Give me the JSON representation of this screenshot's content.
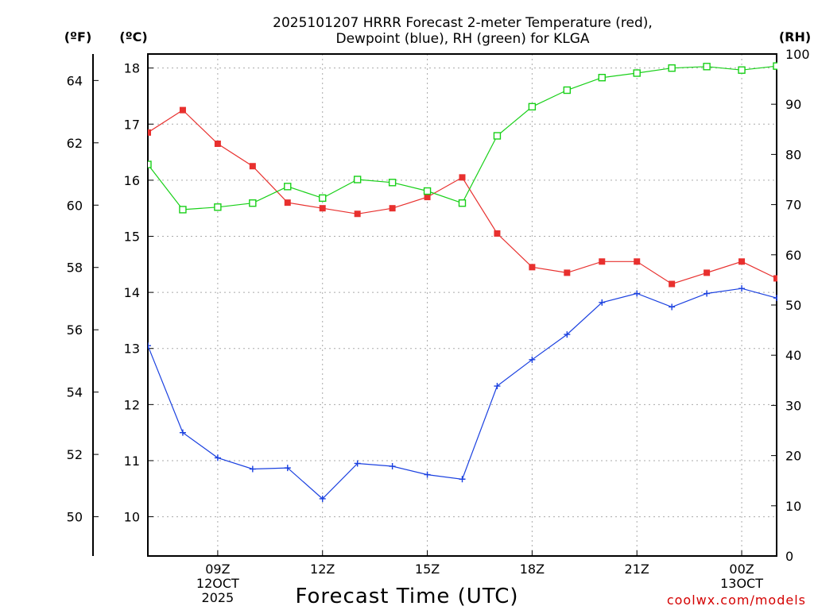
{
  "chart_data": {
    "type": "line",
    "title_lines": [
      "2025101207 HRRR Forecast 2-meter Temperature (red),",
      "Dewpoint (blue), RH (green) for KLGA"
    ],
    "xlabel": "Forecast Time (UTC)",
    "credit": "coolwx.com/models",
    "units": {
      "fahrenheit": "(ºF)",
      "celsius": "(ºC)",
      "rh": "(RH)"
    },
    "x_hours": [
      7,
      8,
      9,
      10,
      11,
      12,
      13,
      14,
      15,
      16,
      17,
      18,
      19,
      20,
      21,
      22,
      23,
      24,
      25
    ],
    "xlim": [
      7,
      25
    ],
    "x_ticks": [
      {
        "hour": 9,
        "lines": [
          "09Z",
          "12OCT",
          "2025"
        ]
      },
      {
        "hour": 12,
        "lines": [
          "12Z"
        ]
      },
      {
        "hour": 15,
        "lines": [
          "15Z"
        ]
      },
      {
        "hour": 18,
        "lines": [
          "18Z"
        ]
      },
      {
        "hour": 21,
        "lines": [
          "21Z"
        ]
      },
      {
        "hour": 24,
        "lines": [
          "00Z",
          "13OCT"
        ]
      }
    ],
    "ylim_c": [
      9.3,
      18.25
    ],
    "y_ticks_c": [
      "10",
      "11",
      "12",
      "13",
      "14",
      "15",
      "16",
      "17",
      "18"
    ],
    "y_ticks_f": [
      "50",
      "52",
      "54",
      "56",
      "58",
      "60",
      "62",
      "64"
    ],
    "ylim_rh": [
      0,
      100
    ],
    "y_ticks_rh": [
      "0",
      "10",
      "20",
      "30",
      "40",
      "50",
      "60",
      "70",
      "80",
      "90",
      "100"
    ],
    "series": [
      {
        "name": "Temperature",
        "unit": "C",
        "color": "#e8302e",
        "marker": "filled-square",
        "values": [
          16.85,
          17.25,
          16.65,
          16.25,
          15.6,
          15.5,
          15.4,
          15.5,
          15.7,
          16.05,
          15.05,
          14.45,
          14.35,
          14.55,
          14.55,
          14.15,
          14.35,
          14.55,
          14.25
        ]
      },
      {
        "name": "Dewpoint",
        "unit": "C",
        "color": "#1a40e0",
        "marker": "plus",
        "values": [
          13.05,
          11.5,
          11.05,
          10.85,
          10.87,
          10.32,
          10.95,
          10.9,
          10.75,
          10.67,
          12.33,
          12.8,
          13.25,
          13.82,
          13.98,
          13.74,
          13.98,
          14.07,
          13.9
        ]
      },
      {
        "name": "RH",
        "unit": "%",
        "color": "#18d018",
        "marker": "open-square",
        "values": [
          78,
          69,
          69.5,
          70.3,
          73.6,
          71.3,
          75,
          74.4,
          72.7,
          70.3,
          83.7,
          89.5,
          92.8,
          95.3,
          96.2,
          97.2,
          97.5,
          96.8,
          97.6
        ]
      }
    ]
  }
}
